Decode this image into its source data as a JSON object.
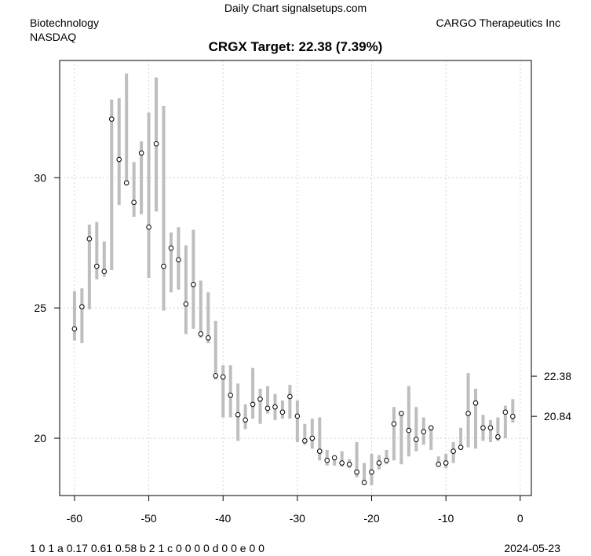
{
  "header": {
    "site": "Daily Chart signalsetups.com",
    "sector": "Biotechnology",
    "exchange": "NASDAQ",
    "company": "CARGO Therapeutics Inc",
    "title": "CRGX Target: 22.38 (7.39%)"
  },
  "footer": {
    "params": "1 0 1 a 0.17 0.61 0.58 b 2 1 c 0 0 0 0 d 0 0 e 0 0",
    "date": "2024-05-23"
  },
  "chart_data": {
    "type": "scatter",
    "title": "CRGX Target: 22.38 (7.39%)",
    "xlabel": "",
    "ylabel": "",
    "xlim": [
      -62,
      1.5
    ],
    "ylim": [
      17.8,
      34.5
    ],
    "x_ticks": [
      -60,
      -50,
      -40,
      -30,
      -20,
      -10,
      0
    ],
    "y_ticks": [
      20,
      25,
      30
    ],
    "right_ticks": [
      22.38,
      20.84
    ],
    "grid": true,
    "bar_color": "#bebebe",
    "series": [
      {
        "x": [
          -60,
          -59,
          -58,
          -57,
          -56,
          -55,
          -54,
          -53,
          -52,
          -51,
          -50,
          -49,
          -48,
          -47,
          -46,
          -45,
          -44,
          -43,
          -42,
          -41,
          -40,
          -39,
          -38,
          -37,
          -36,
          -35,
          -34,
          -33,
          -32,
          -31,
          -30,
          -29,
          -28,
          -27,
          -26,
          -25,
          -24,
          -23,
          -22,
          -21,
          -20,
          -19,
          -18,
          -17,
          -16,
          -15,
          -14,
          -13,
          -12,
          -11,
          -10,
          -9,
          -8,
          -7,
          -6,
          -5,
          -4,
          -3,
          -2,
          -1
        ],
        "close": [
          24.2,
          25.05,
          27.65,
          26.6,
          26.4,
          32.25,
          30.7,
          29.8,
          29.05,
          30.95,
          28.1,
          31.3,
          26.6,
          27.3,
          26.85,
          25.15,
          25.9,
          24.0,
          23.85,
          22.4,
          22.35,
          21.65,
          20.9,
          20.7,
          21.3,
          21.5,
          21.15,
          21.2,
          21.0,
          21.6,
          20.85,
          19.9,
          20.0,
          19.5,
          19.15,
          19.25,
          19.05,
          19.0,
          18.7,
          18.3,
          18.7,
          19.05,
          19.15,
          20.55,
          20.95,
          20.3,
          19.95,
          20.25,
          20.4,
          19.0,
          19.05,
          19.5,
          19.65,
          20.95,
          21.35,
          20.4,
          20.4,
          20.05,
          21.0,
          20.84
        ],
        "high": [
          25.65,
          25.75,
          28.2,
          28.3,
          27.55,
          33.0,
          33.05,
          34.0,
          30.6,
          31.4,
          32.5,
          33.85,
          32.75,
          27.9,
          28.1,
          27.4,
          28.0,
          26.05,
          25.6,
          24.5,
          22.8,
          22.8,
          22.1,
          21.3,
          22.7,
          21.9,
          22.0,
          21.7,
          21.45,
          22.05,
          21.45,
          20.55,
          20.75,
          20.8,
          19.55,
          19.3,
          19.5,
          19.2,
          19.85,
          19.05,
          19.4,
          19.35,
          19.55,
          21.2,
          21.0,
          22.0,
          21.2,
          20.8,
          20.4,
          19.3,
          19.4,
          19.85,
          20.4,
          22.5,
          21.9,
          20.9,
          20.7,
          20.8,
          21.25,
          21.5
        ]
      },
      {
        "low": [
          23.75,
          23.65,
          24.95,
          26.1,
          26.2,
          26.45,
          28.95,
          29.75,
          28.5,
          28.6,
          26.15,
          28.7,
          24.9,
          25.6,
          25.7,
          24.0,
          24.2,
          23.85,
          23.65,
          22.25,
          20.8,
          20.8,
          19.9,
          20.35,
          20.75,
          20.55,
          20.95,
          20.7,
          20.75,
          20.75,
          19.85,
          19.75,
          19.6,
          19.15,
          18.95,
          18.95,
          18.9,
          18.85,
          18.5,
          18.25,
          18.2,
          18.8,
          19.0,
          19.15,
          19.0,
          19.3,
          19.5,
          19.75,
          19.55,
          18.9,
          18.85,
          19.05,
          19.55,
          19.65,
          19.6,
          19.9,
          19.85,
          19.9,
          20.0,
          20.6
        ]
      }
    ]
  }
}
